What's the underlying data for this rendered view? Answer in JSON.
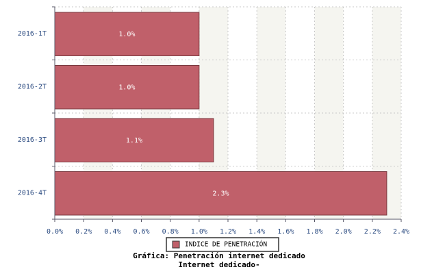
{
  "chart_data": {
    "type": "bar",
    "orientation": "horizontal",
    "title": "Gráfica: Penetración internet dedicado",
    "subtitle": "Internet dedicado-",
    "categories": [
      "2016-1T",
      "2016-2T",
      "2016-3T",
      "2016-4T"
    ],
    "series": [
      {
        "name": "INDICE DE PENETRACIÓN",
        "color": "#c0606a",
        "values": [
          1.0,
          1.0,
          1.1,
          2.3
        ],
        "value_labels": [
          "1.0%",
          "1.0%",
          "1.1%",
          "2.3%"
        ]
      }
    ],
    "xlim": [
      0,
      2.4
    ],
    "xticks": [
      {
        "value": 0,
        "label": "0.0%"
      },
      {
        "value": 0.2,
        "label": "0.2%"
      },
      {
        "value": 0.4,
        "label": "0.4%"
      },
      {
        "value": 0.6,
        "label": "0.6%"
      },
      {
        "value": 0.8,
        "label": "0.8%"
      },
      {
        "value": 1.0,
        "label": "1.0%"
      },
      {
        "value": 1.2,
        "label": "1.2%"
      },
      {
        "value": 1.4,
        "label": "1.4%"
      },
      {
        "value": 1.6,
        "label": "1.6%"
      },
      {
        "value": 1.8,
        "label": "1.8%"
      },
      {
        "value": 2.0,
        "label": "2.0%"
      },
      {
        "value": 2.2,
        "label": "2.2%"
      },
      {
        "value": 2.4,
        "label": "2.4%"
      }
    ],
    "grid": true,
    "legend": "bottom"
  }
}
